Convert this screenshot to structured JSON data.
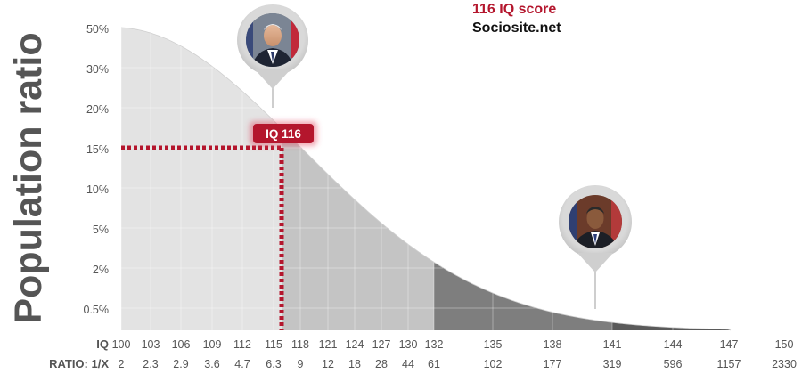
{
  "chart_data": {
    "type": "area",
    "title": "116 IQ score",
    "subtitle": "Sociosite.net",
    "ylabel": "Population ratio",
    "y_ticks": [
      "50%",
      "30%",
      "20%",
      "15%",
      "10%",
      "5%",
      "2%",
      "0.5%"
    ],
    "x_row_label": "IQ",
    "ratio_row_label": "RATIO: 1/X",
    "x_ticks": [
      100,
      103,
      106,
      109,
      112,
      115,
      118,
      121,
      124,
      127,
      130,
      132,
      135,
      138,
      141,
      144,
      147,
      150
    ],
    "ratio_ticks": [
      "2",
      "2.3",
      "2.9",
      "3.6",
      "4.7",
      "6.3",
      "9",
      "12",
      "18",
      "28",
      "44",
      "61",
      "102",
      "177",
      "319",
      "596",
      "1157",
      "2330"
    ],
    "series": [
      {
        "x": [
          100,
          103,
          106,
          109,
          112,
          115,
          118,
          121,
          124,
          127,
          130,
          132,
          135,
          138,
          141,
          144,
          147,
          150
        ],
        "values": [
          "50%",
          "43%",
          "35%",
          "28%",
          "21%",
          "16%",
          "11%",
          "8.1%",
          "5.5%",
          "3.6%",
          "2.3%",
          "1.6%",
          "1%",
          "0.57%",
          "0.31%",
          "0.17%",
          "0.09%",
          "0.04%"
        ]
      }
    ],
    "bands": [
      {
        "from": 100,
        "to": 116,
        "color": "#e3e3e3"
      },
      {
        "from": 116,
        "to": 132,
        "color": "#c4c4c4"
      },
      {
        "from": 132,
        "to": 141,
        "color": "#7e7e7e"
      },
      {
        "from": 141,
        "to": 150,
        "color": "#5a5a5a"
      }
    ],
    "marker": {
      "label": "IQ 116",
      "x": 116,
      "y": "15%",
      "color": "#b4162d"
    },
    "pins": [
      {
        "name": "biden-portrait",
        "x": 115
      },
      {
        "name": "obama-portrait",
        "x": 140
      }
    ]
  }
}
